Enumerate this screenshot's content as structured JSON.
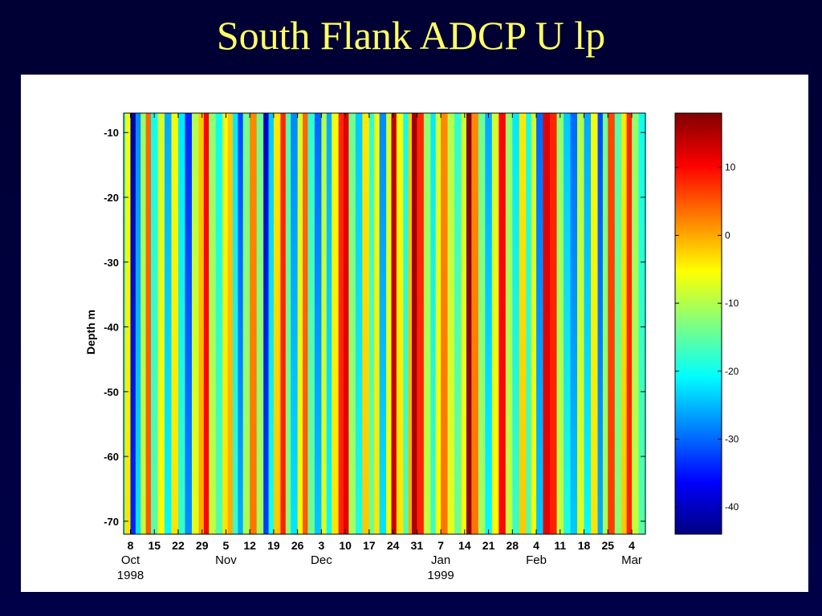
{
  "slide": {
    "title": "South Flank ADCP U lp"
  },
  "chart_data": {
    "type": "heatmap",
    "title": "",
    "xlabel": "",
    "ylabel": "Depth m",
    "x_axis": {
      "start_date": "1998-10-06",
      "end_date": "1999-03-08",
      "day_ticks": [
        "8",
        "15",
        "22",
        "29",
        "5",
        "12",
        "19",
        "26",
        "3",
        "10",
        "17",
        "24",
        "31",
        "7",
        "14",
        "21",
        "28",
        "4",
        "11",
        "18",
        "25",
        "4"
      ],
      "day_tick_dates": [
        "1998-10-08",
        "1998-10-15",
        "1998-10-22",
        "1998-10-29",
        "1998-11-05",
        "1998-11-12",
        "1998-11-19",
        "1998-11-26",
        "1998-12-03",
        "1998-12-10",
        "1998-12-17",
        "1998-12-24",
        "1998-12-31",
        "1999-01-07",
        "1999-01-14",
        "1999-01-21",
        "1999-01-28",
        "1999-02-04",
        "1999-02-11",
        "1999-02-18",
        "1999-02-25",
        "1999-03-04"
      ],
      "month_labels": [
        {
          "label": "Oct",
          "date": "1998-10-08",
          "year": "1998"
        },
        {
          "label": "Nov",
          "date": "1998-11-05",
          "year": ""
        },
        {
          "label": "Dec",
          "date": "1998-12-03",
          "year": ""
        },
        {
          "label": "Jan",
          "date": "1999-01-07",
          "year": "1999"
        },
        {
          "label": "Feb",
          "date": "1999-02-04",
          "year": ""
        },
        {
          "label": "Mar",
          "date": "1999-03-04",
          "year": ""
        }
      ]
    },
    "y_axis": {
      "ylim": [
        -72,
        -7
      ],
      "ticks": [
        -10,
        -20,
        -30,
        -40,
        -50,
        -60,
        -70
      ],
      "tick_labels": [
        "-10",
        "-20",
        "-30",
        "-40",
        "-50",
        "-60",
        "-70"
      ]
    },
    "colorbar": {
      "colormap": "jet",
      "clim": [
        -44,
        18
      ],
      "ticks": [
        10,
        0,
        -10,
        -20,
        -30,
        -40
      ],
      "tick_labels": [
        "10",
        "0",
        "-10",
        "-20",
        "-30",
        "-40"
      ]
    },
    "depth_gradient": 0.15,
    "bands": [
      {
        "date": "1998-10-06",
        "u": -18
      },
      {
        "date": "1998-10-07",
        "u": -6
      },
      {
        "date": "1998-10-09",
        "u": -42
      },
      {
        "date": "1998-10-10",
        "u": -28
      },
      {
        "date": "1998-10-12",
        "u": -12
      },
      {
        "date": "1998-10-13",
        "u": 4
      },
      {
        "date": "1998-10-15",
        "u": -20
      },
      {
        "date": "1998-10-17",
        "u": -8
      },
      {
        "date": "1998-10-19",
        "u": -26
      },
      {
        "date": "1998-10-21",
        "u": -6
      },
      {
        "date": "1998-10-23",
        "u": -22
      },
      {
        "date": "1998-10-25",
        "u": -34
      },
      {
        "date": "1998-10-27",
        "u": -10
      },
      {
        "date": "1998-10-29",
        "u": -2
      },
      {
        "date": "1998-10-30",
        "u": 10
      },
      {
        "date": "1998-11-01",
        "u": -12
      },
      {
        "date": "1998-11-03",
        "u": -20
      },
      {
        "date": "1998-11-05",
        "u": -6
      },
      {
        "date": "1998-11-06",
        "u": -2
      },
      {
        "date": "1998-11-08",
        "u": -22
      },
      {
        "date": "1998-11-09",
        "u": -32
      },
      {
        "date": "1998-11-11",
        "u": -14
      },
      {
        "date": "1998-11-13",
        "u": 2
      },
      {
        "date": "1998-11-15",
        "u": -14
      },
      {
        "date": "1998-11-17",
        "u": -40
      },
      {
        "date": "1998-11-18",
        "u": -24
      },
      {
        "date": "1998-11-20",
        "u": -4
      },
      {
        "date": "1998-11-22",
        "u": 8
      },
      {
        "date": "1998-11-23",
        "u": -16
      },
      {
        "date": "1998-11-25",
        "u": -28
      },
      {
        "date": "1998-11-27",
        "u": -8
      },
      {
        "date": "1998-11-28",
        "u": 4
      },
      {
        "date": "1998-11-30",
        "u": -18
      },
      {
        "date": "1998-12-02",
        "u": -30
      },
      {
        "date": "1998-12-04",
        "u": -10
      },
      {
        "date": "1998-12-05",
        "u": -26
      },
      {
        "date": "1998-12-07",
        "u": -6
      },
      {
        "date": "1998-12-09",
        "u": 8
      },
      {
        "date": "1998-12-10",
        "u": 12
      },
      {
        "date": "1998-12-12",
        "u": -14
      },
      {
        "date": "1998-12-14",
        "u": -24
      },
      {
        "date": "1998-12-16",
        "u": -4
      },
      {
        "date": "1998-12-18",
        "u": -18
      },
      {
        "date": "1998-12-19",
        "u": -6
      },
      {
        "date": "1998-12-21",
        "u": -28
      },
      {
        "date": "1998-12-23",
        "u": -8
      },
      {
        "date": "1998-12-24",
        "u": 14
      },
      {
        "date": "1998-12-26",
        "u": -6
      },
      {
        "date": "1998-12-28",
        "u": -20
      },
      {
        "date": "1998-12-29",
        "u": -2
      },
      {
        "date": "1998-12-30",
        "u": 16
      },
      {
        "date": "1999-01-01",
        "u": 8
      },
      {
        "date": "1999-01-03",
        "u": -12
      },
      {
        "date": "1999-01-05",
        "u": -22
      },
      {
        "date": "1999-01-06",
        "u": -8
      },
      {
        "date": "1999-01-08",
        "u": 2
      },
      {
        "date": "1999-01-10",
        "u": -10
      },
      {
        "date": "1999-01-12",
        "u": -18
      },
      {
        "date": "1999-01-14",
        "u": -8
      },
      {
        "date": "1999-01-15",
        "u": 18
      },
      {
        "date": "1999-01-17",
        "u": 2
      },
      {
        "date": "1999-01-19",
        "u": -14
      },
      {
        "date": "1999-01-21",
        "u": -26
      },
      {
        "date": "1999-01-23",
        "u": -8
      },
      {
        "date": "1999-01-25",
        "u": 10
      },
      {
        "date": "1999-01-27",
        "u": -12
      },
      {
        "date": "1999-01-29",
        "u": -22
      },
      {
        "date": "1999-01-31",
        "u": -4
      },
      {
        "date": "1999-02-02",
        "u": -20
      },
      {
        "date": "1999-02-03",
        "u": -8
      },
      {
        "date": "1999-02-05",
        "u": -30
      },
      {
        "date": "1999-02-07",
        "u": 12
      },
      {
        "date": "1999-02-09",
        "u": 8
      },
      {
        "date": "1999-02-11",
        "u": -12
      },
      {
        "date": "1999-02-13",
        "u": -24
      },
      {
        "date": "1999-02-15",
        "u": -30
      },
      {
        "date": "1999-02-17",
        "u": -10
      },
      {
        "date": "1999-02-19",
        "u": -26
      },
      {
        "date": "1999-02-21",
        "u": -6
      },
      {
        "date": "1999-02-23",
        "u": -32
      },
      {
        "date": "1999-02-24",
        "u": -14
      },
      {
        "date": "1999-02-26",
        "u": 6
      },
      {
        "date": "1999-02-28",
        "u": -16
      },
      {
        "date": "1999-03-02",
        "u": -4
      },
      {
        "date": "1999-03-03",
        "u": 8
      },
      {
        "date": "1999-03-05",
        "u": -12
      },
      {
        "date": "1999-03-07",
        "u": -20
      }
    ]
  }
}
